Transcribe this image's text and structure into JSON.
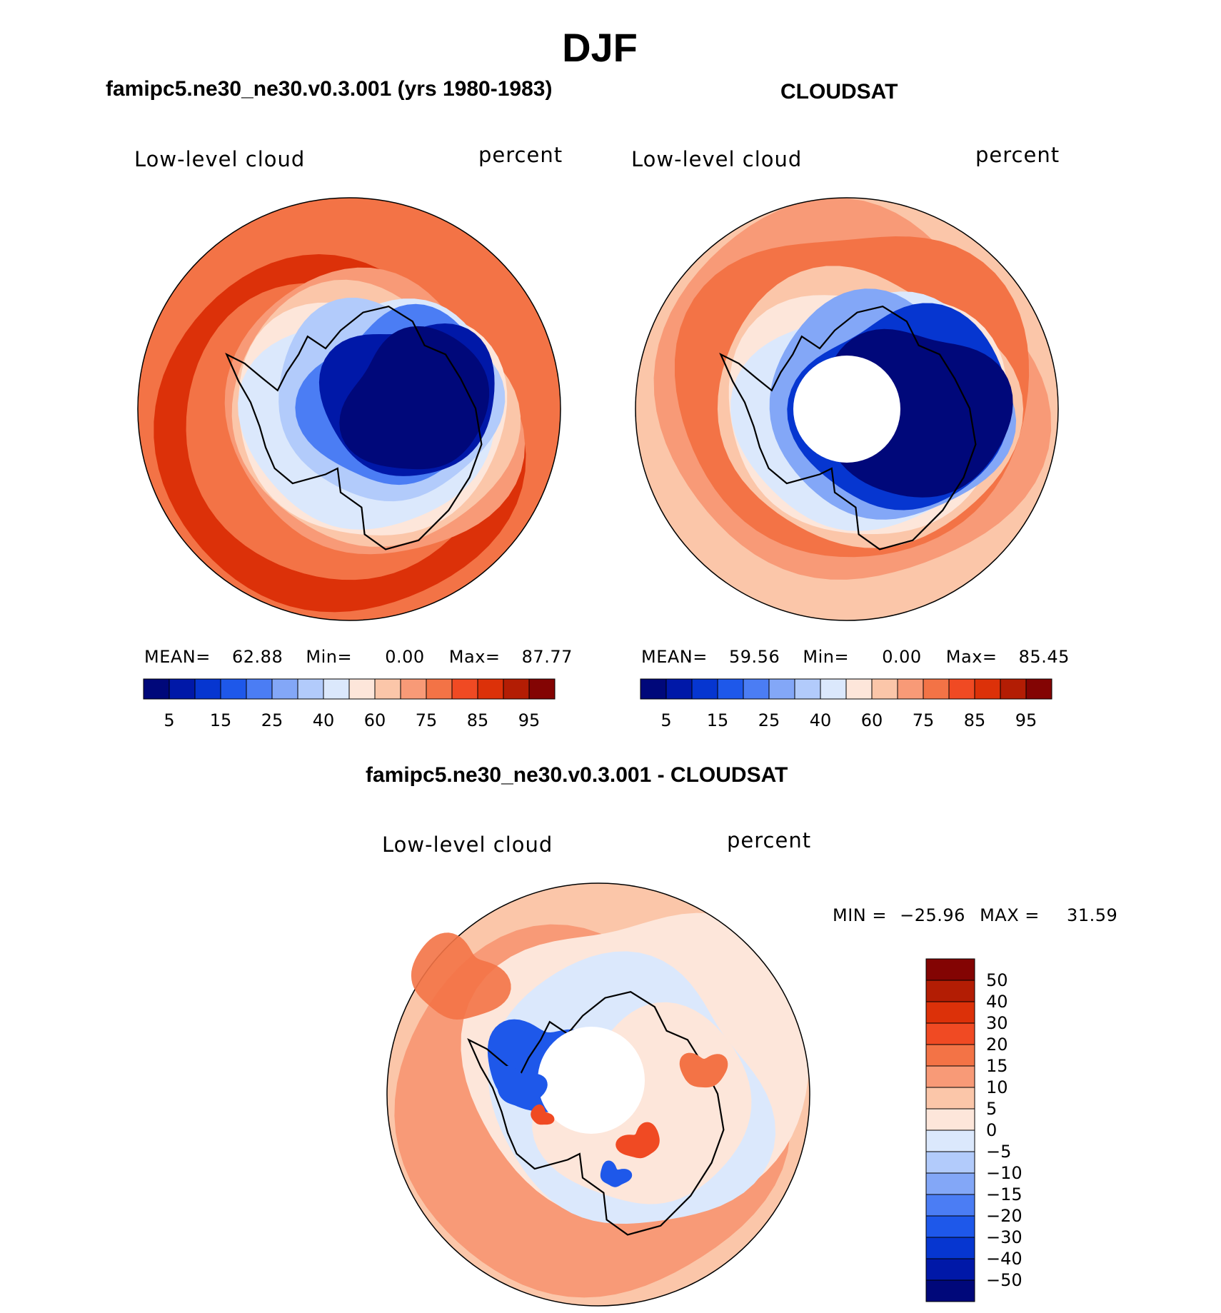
{
  "figure": {
    "title": "DJF",
    "panel_left_title": "famipc5.ne30_ne30.v0.3.001 (yrs 1980-1983)",
    "panel_right_title": "CLOUDSAT",
    "panel_bottom_title": "famipc5.ne30_ne30.v0.3.001 - CLOUDSAT"
  },
  "colors": {
    "abs_palette": [
      "#00087a",
      "#0018a8",
      "#0636d0",
      "#1e58ea",
      "#4b7df4",
      "#83a7f7",
      "#b2cbfb",
      "#dbe8fc",
      "#fde6da",
      "#fbc6a9",
      "#f89a77",
      "#f37346",
      "#f04a23",
      "#dc3109",
      "#b31d04",
      "#830403"
    ],
    "diff_palette": [
      "#00087a",
      "#0018a8",
      "#0636d0",
      "#1e58ea",
      "#4b7df4",
      "#83a7f7",
      "#b2cbfb",
      "#dbe8fc",
      "#fde6da",
      "#fbc6a9",
      "#f89a77",
      "#f37346",
      "#f04a23",
      "#dc3109",
      "#b31d04",
      "#830403"
    ],
    "coastline": "#000000"
  },
  "chart_data": [
    {
      "type": "heatmap",
      "name": "model",
      "title": "famipc5.ne30_ne30.v0.3.001 (yrs 1980-1983)",
      "left_label": "Low-level cloud",
      "right_label": "percent",
      "projection": "south-polar-stereographic",
      "stats": {
        "mean_label": "MEAN=",
        "mean": "62.88",
        "min_label": "Min=",
        "min": "0.00",
        "max_label": "Max=",
        "max": "87.77"
      },
      "levels": [
        5,
        10,
        15,
        20,
        25,
        30,
        40,
        50,
        60,
        70,
        75,
        80,
        85,
        90,
        95
      ],
      "tick_labels": [
        "5",
        "15",
        "25",
        "40",
        "60",
        "75",
        "85",
        "95"
      ],
      "description_values": {
        "antarctic_interior": 0,
        "sea_ice_edge": 60,
        "southern_ocean": 85
      }
    },
    {
      "type": "heatmap",
      "name": "obs",
      "title": "CLOUDSAT",
      "left_label": "Low-level cloud",
      "right_label": "percent",
      "projection": "south-polar-stereographic",
      "stats": {
        "mean_label": "MEAN=",
        "mean": "59.56",
        "min_label": "Min=",
        "min": "0.00",
        "max_label": "Max=",
        "max": "85.45"
      },
      "levels": [
        5,
        10,
        15,
        20,
        25,
        30,
        40,
        50,
        60,
        70,
        75,
        80,
        85,
        90,
        95
      ],
      "tick_labels": [
        "5",
        "15",
        "25",
        "40",
        "60",
        "75",
        "85",
        "95"
      ],
      "description_values": {
        "antarctic_interior": 0,
        "sea_ice_edge": 60,
        "southern_ocean": 80
      }
    },
    {
      "type": "heatmap",
      "name": "diff",
      "title": "famipc5.ne30_ne30.v0.3.001 - CLOUDSAT",
      "left_label": "Low-level cloud",
      "right_label": "percent",
      "projection": "south-polar-stereographic",
      "stats": {
        "min_label": "MIN =",
        "min": "−25.96",
        "max_label": "MAX =",
        "max": "31.59"
      },
      "levels": [
        -50,
        -40,
        -30,
        -20,
        -15,
        -10,
        -5,
        0,
        5,
        10,
        15,
        20,
        30,
        40,
        50
      ],
      "tick_labels": [
        "50",
        "40",
        "30",
        "20",
        "15",
        "10",
        "5",
        "0",
        "−5",
        "−10",
        "−15",
        "−20",
        "−30",
        "−40",
        "−50"
      ]
    }
  ]
}
